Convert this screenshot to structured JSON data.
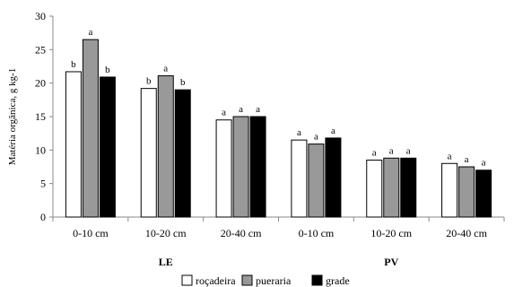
{
  "chart_data": {
    "type": "bar",
    "ylabel": "Matéria orgânica, g kg-1",
    "ylim": [
      0,
      30
    ],
    "yticks": [
      0,
      5,
      10,
      15,
      20,
      25,
      30
    ],
    "grid": false,
    "legend_position": "bottom",
    "categories": [
      "0-10 cm",
      "10-20 cm",
      "20-40 cm",
      "0-10 cm",
      "10-20 cm",
      "20-40 cm"
    ],
    "groups": [
      {
        "label": "LE",
        "categories": [
          "0-10 cm",
          "10-20 cm",
          "20-40 cm"
        ]
      },
      {
        "label": "PV",
        "categories": [
          "0-10 cm",
          "10-20 cm",
          "20-40 cm"
        ]
      }
    ],
    "series": [
      {
        "name": "roçadeira",
        "color": "#ffffff",
        "values": [
          21.7,
          19.2,
          14.5,
          11.5,
          8.5,
          8.0
        ],
        "labels": [
          "b",
          "b",
          "a",
          "a",
          "a",
          "a"
        ]
      },
      {
        "name": "pueraria",
        "color": "#999999",
        "values": [
          26.5,
          21.1,
          15.0,
          10.9,
          8.8,
          7.5
        ],
        "labels": [
          "a",
          "a",
          "a",
          "a",
          "a",
          "a"
        ]
      },
      {
        "name": "grade",
        "color": "#000000",
        "values": [
          20.9,
          19.0,
          15.0,
          11.8,
          8.8,
          7.0
        ],
        "labels": [
          "b",
          "b",
          "a",
          "a",
          "a",
          "a"
        ]
      }
    ]
  }
}
